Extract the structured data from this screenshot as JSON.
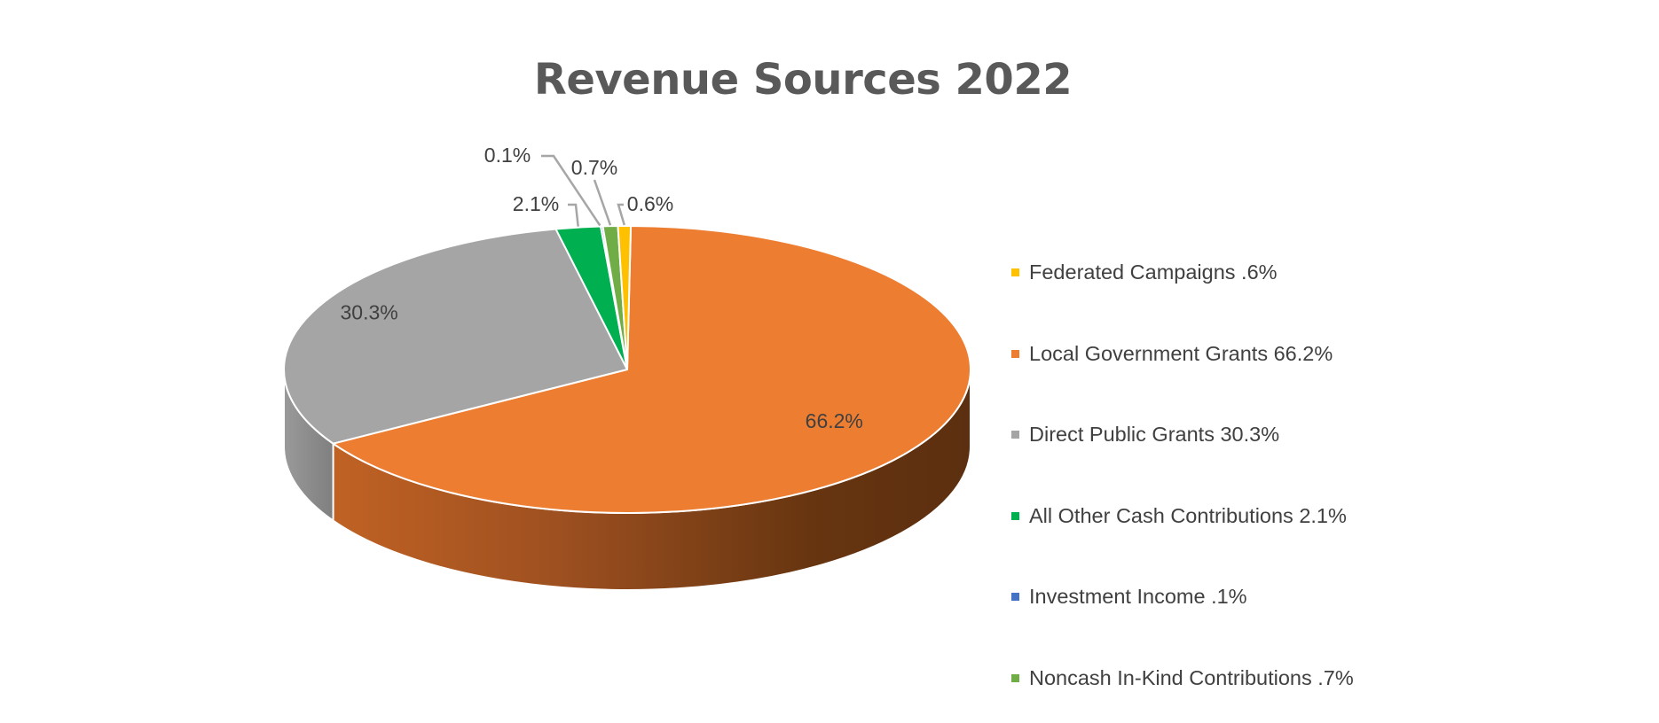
{
  "title": "Revenue Sources 2022",
  "colors": {
    "federated": "#FFC000",
    "local": "#ED7D31",
    "direct": "#A5A5A5",
    "cash": "#00B050",
    "investment": "#4472C4",
    "noncash": "#70AD47"
  },
  "chart_data": {
    "type": "pie",
    "style": "3d",
    "title": "Revenue Sources 2022",
    "legend_position": "right",
    "slices": [
      {
        "key": "federated",
        "value": 0.6,
        "data_label": "0.6%",
        "legend": "Federated Campaigns .6%",
        "color": "#FFC000"
      },
      {
        "key": "local",
        "value": 66.2,
        "data_label": "66.2%",
        "legend": "Local Government Grants 66.2%",
        "color": "#ED7D31"
      },
      {
        "key": "direct",
        "value": 30.3,
        "data_label": "30.3%",
        "legend": "Direct Public Grants 30.3%",
        "color": "#A5A5A5"
      },
      {
        "key": "cash",
        "value": 2.1,
        "data_label": "2.1%",
        "legend": "All Other Cash Contributions 2.1%",
        "color": "#00B050"
      },
      {
        "key": "investment",
        "value": 0.1,
        "data_label": "0.1%",
        "legend": "Investment Income .1%",
        "color": "#4472C4"
      },
      {
        "key": "noncash",
        "value": 0.7,
        "data_label": "0.7%",
        "legend": "Noncash In-Kind Contributions .7%",
        "color": "#70AD47"
      }
    ]
  }
}
